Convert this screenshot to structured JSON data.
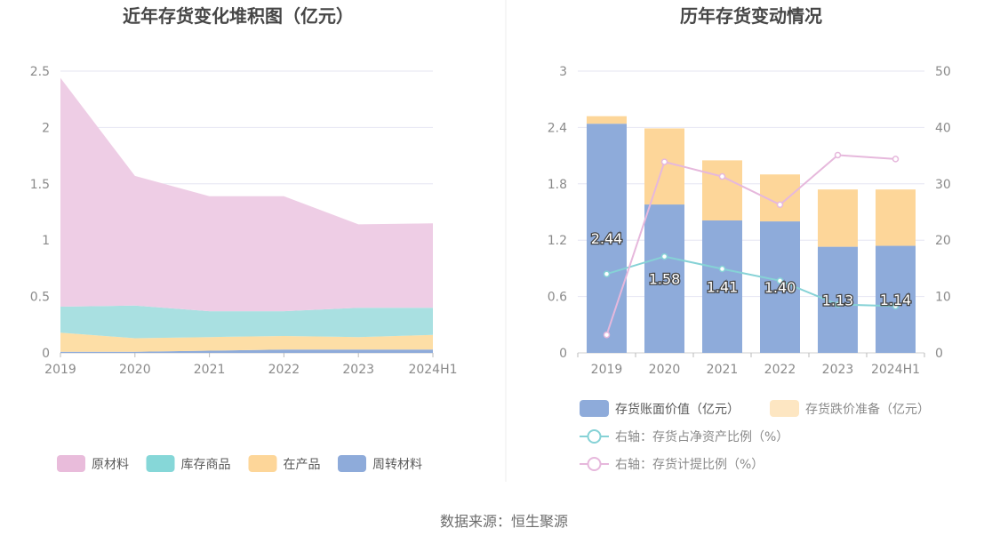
{
  "source": "数据来源：恒生聚源",
  "chart_data": [
    {
      "type": "area",
      "stacked": true,
      "title": "近年存货变化堆积图（亿元）",
      "categories": [
        "2019",
        "2020",
        "2021",
        "2022",
        "2023",
        "2024H1"
      ],
      "ylim": [
        0,
        2.5
      ],
      "yticks": [
        "0",
        "0.5",
        "1",
        "1.5",
        "2",
        "2.5"
      ],
      "grid": true,
      "legend_position": "bottom",
      "series": [
        {
          "name": "周转材料",
          "color": "#8eabda",
          "values": [
            0.01,
            0.01,
            0.02,
            0.03,
            0.03,
            0.03
          ]
        },
        {
          "name": "在产品",
          "color": "#fddea6",
          "values": [
            0.17,
            0.12,
            0.12,
            0.12,
            0.11,
            0.13
          ]
        },
        {
          "name": "库存商品",
          "color": "#a9e0e1",
          "values": [
            0.23,
            0.29,
            0.23,
            0.22,
            0.26,
            0.24
          ]
        },
        {
          "name": "原材料",
          "color": "#eecde5",
          "values": [
            2.03,
            1.15,
            1.02,
            1.02,
            0.74,
            0.75
          ]
        }
      ],
      "legend_order": [
        "原材料",
        "库存商品",
        "在产品",
        "周转材料"
      ],
      "legend_colors": [
        "#e9bcdb",
        "#86d7d8",
        "#fdd699",
        "#8eabda"
      ]
    },
    {
      "type": "bar",
      "title": "历年存货变动情况",
      "categories": [
        "2019",
        "2020",
        "2021",
        "2022",
        "2023",
        "2024H1"
      ],
      "ylim": [
        0,
        3
      ],
      "yticks": [
        "0",
        "0.6",
        "1.2",
        "1.8",
        "2.4",
        "3"
      ],
      "y2lim": [
        0,
        50
      ],
      "y2ticks": [
        "0",
        "10",
        "20",
        "30",
        "40",
        "50"
      ],
      "grid": true,
      "legend_position": "bottom",
      "bar_series": [
        {
          "name": "存货账面价值（亿元）",
          "color": "#8eabda",
          "values": [
            2.44,
            1.58,
            1.41,
            1.4,
            1.13,
            1.14
          ],
          "labels": [
            "2.44",
            "1.58",
            "1.41",
            "1.40",
            "1.13",
            "1.14"
          ]
        },
        {
          "name": "存货跌价准备（亿元）",
          "color": "#fdd699",
          "legend_color": "#fde6c2",
          "values": [
            0.08,
            0.81,
            0.64,
            0.5,
            0.61,
            0.6
          ]
        }
      ],
      "line_series": [
        {
          "name": "右轴：存货占净资产比例（%）",
          "color": "#86d2d6",
          "values": [
            14.0,
            17.1,
            14.9,
            12.8,
            8.6,
            8.3
          ]
        },
        {
          "name": "右轴：存货计提比例（%）",
          "color": "#e6b8dc",
          "values": [
            3.2,
            33.9,
            31.3,
            26.3,
            35.1,
            34.4
          ]
        }
      ]
    }
  ]
}
